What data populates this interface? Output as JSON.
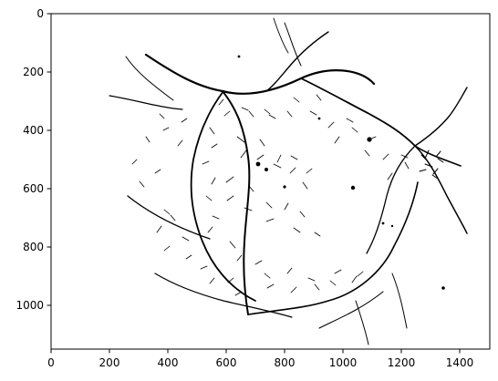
{
  "figure": {
    "background": "#ffffff",
    "ink_color": "#000000",
    "image_description_kind": "binary vessel segmentation of a retinal fundus image (matplotlib imshow, gray colormap inverted)"
  },
  "axes": {
    "x_ticks": [
      "0",
      "200",
      "400",
      "600",
      "800",
      "1000",
      "1200",
      "1400"
    ],
    "y_ticks": [
      "0",
      "200",
      "400",
      "600",
      "800",
      "1000"
    ],
    "x_range": [
      0,
      1500
    ],
    "y_range": [
      1150,
      0
    ],
    "grid": false
  }
}
